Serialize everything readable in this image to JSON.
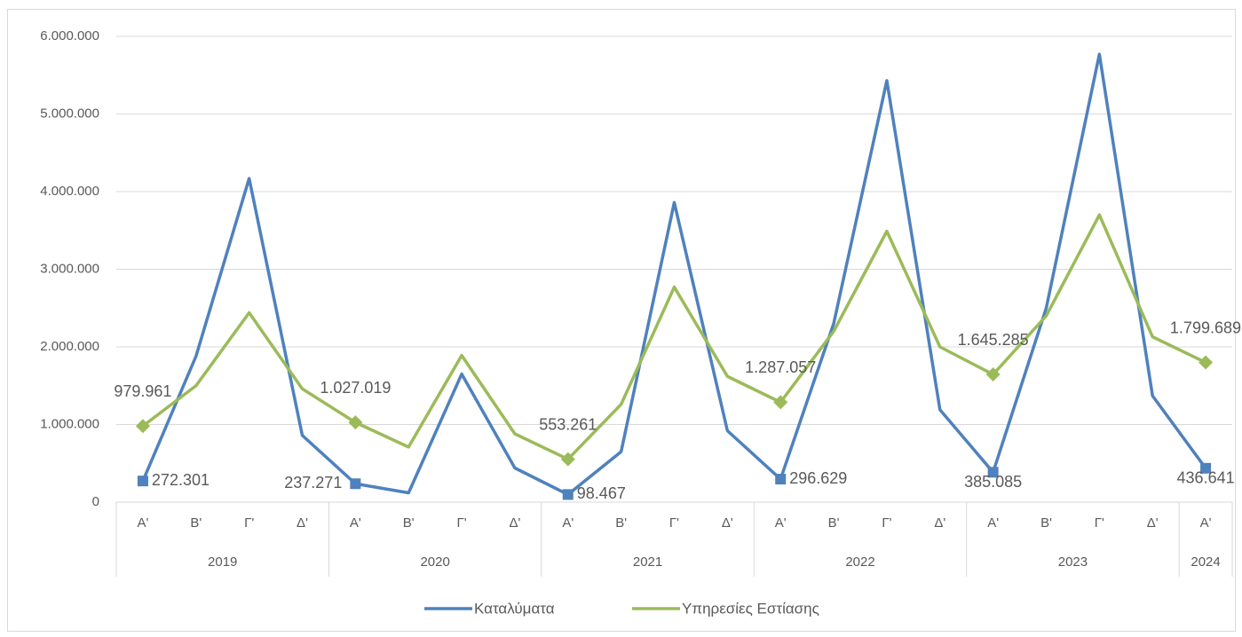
{
  "chart_data": {
    "type": "line",
    "categories": [
      "Α'",
      "Β'",
      "Γ'",
      "Δ'",
      "Α'",
      "Β'",
      "Γ'",
      "Δ'",
      "Α'",
      "Β'",
      "Γ'",
      "Δ'",
      "Α'",
      "Β'",
      "Γ'",
      "Δ'",
      "Α'",
      "Β'",
      "Γ'",
      "Δ'",
      "Α'"
    ],
    "groups": [
      {
        "name": "2019",
        "size": 4
      },
      {
        "name": "2020",
        "size": 4
      },
      {
        "name": "2021",
        "size": 4
      },
      {
        "name": "2022",
        "size": 4
      },
      {
        "name": "2023",
        "size": 4
      },
      {
        "name": "2024",
        "size": 1
      }
    ],
    "series": [
      {
        "name": "Καταλύματα",
        "color": "#4f81bd",
        "marker": "square",
        "values": [
          272301,
          1880000,
          4170000,
          860000,
          237271,
          120000,
          1650000,
          440000,
          98467,
          650000,
          3860000,
          920000,
          296629,
          2300000,
          5430000,
          1190000,
          385085,
          2500000,
          5770000,
          1370000,
          436641
        ],
        "value_labels": [
          "272.301",
          null,
          null,
          null,
          "237.271",
          null,
          null,
          null,
          "98.467",
          null,
          null,
          null,
          "296.629",
          null,
          null,
          null,
          "385.085",
          null,
          null,
          null,
          "436.641"
        ]
      },
      {
        "name": "Υπηρεσίες Εστίασης",
        "color": "#9bbb59",
        "marker": "diamond",
        "values": [
          979961,
          1500000,
          2440000,
          1460000,
          1027019,
          710000,
          1890000,
          880000,
          553261,
          1260000,
          2770000,
          1620000,
          1287057,
          2200000,
          3490000,
          2000000,
          1645285,
          2400000,
          3700000,
          2130000,
          1799689
        ],
        "value_labels": [
          "979.961",
          null,
          null,
          null,
          "1.027.019",
          null,
          null,
          null,
          "553.261",
          null,
          null,
          null,
          "1.287.057",
          null,
          null,
          null,
          "1.645.285",
          null,
          null,
          null,
          "1.799.689"
        ]
      }
    ],
    "ylim": [
      0,
      6000000
    ],
    "yticks": [
      0,
      {
        "value": 1000000,
        "label": "1.000.000"
      },
      {
        "value": 2000000,
        "label": "2.000.000"
      },
      {
        "value": 3000000,
        "label": "3.000.000"
      },
      {
        "value": 4000000,
        "label": "4.000.000"
      },
      {
        "value": 5000000,
        "label": "5.000.000"
      },
      {
        "value": 6000000,
        "label": "6.000.000"
      }
    ],
    "grid": true,
    "legend": "bottom"
  }
}
